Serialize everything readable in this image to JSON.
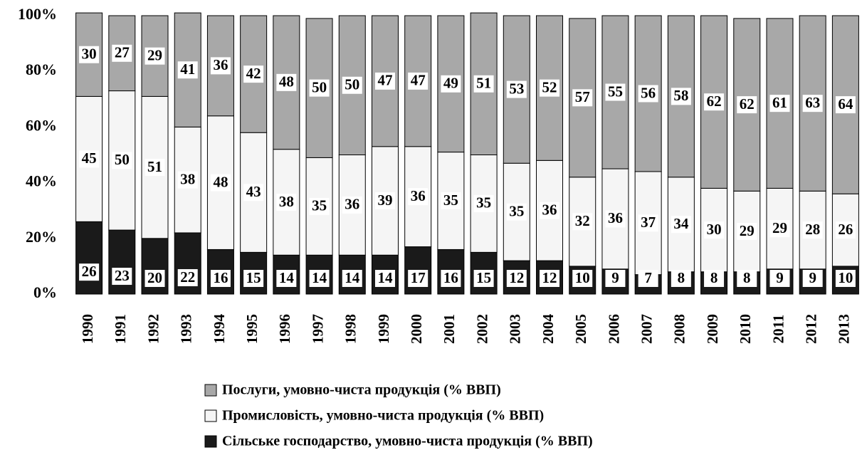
{
  "chart_data": {
    "type": "stacked_bar",
    "categories": [
      "1990",
      "1991",
      "1992",
      "1993",
      "1994",
      "1995",
      "1996",
      "1997",
      "1998",
      "1999",
      "2000",
      "2001",
      "2002",
      "2003",
      "2004",
      "2005",
      "2006",
      "2007",
      "2008",
      "2009",
      "2010",
      "2011",
      "2012",
      "2013"
    ],
    "series": [
      {
        "name": "Сільське господарство, умовно-чиста продукція (% ВВП)",
        "color": "#1a1a1a",
        "values": [
          26,
          23,
          20,
          22,
          16,
          15,
          14,
          14,
          14,
          14,
          17,
          16,
          15,
          12,
          12,
          10,
          9,
          7,
          8,
          8,
          8,
          9,
          9,
          10
        ]
      },
      {
        "name": "Промисловість, умовно-чиста продукція (% ВВП)",
        "color": "#f5f5f5",
        "values": [
          45,
          50,
          51,
          38,
          48,
          43,
          38,
          35,
          36,
          39,
          36,
          35,
          35,
          35,
          36,
          32,
          36,
          37,
          34,
          30,
          29,
          29,
          28,
          26
        ]
      },
      {
        "name": "Послуги, умовно-чиста продукція (% ВВП)",
        "color": "#a8a8a8",
        "values": [
          30,
          27,
          29,
          41,
          36,
          42,
          48,
          50,
          50,
          47,
          47,
          49,
          51,
          53,
          52,
          57,
          55,
          56,
          58,
          62,
          62,
          61,
          63,
          64
        ]
      }
    ],
    "ylim": [
      0,
      100
    ],
    "yticks": [
      {
        "value": 0,
        "label": "0%"
      },
      {
        "value": 20,
        "label": "20%"
      },
      {
        "value": 40,
        "label": "40%"
      },
      {
        "value": 60,
        "label": "60%"
      },
      {
        "value": 80,
        "label": "80%"
      },
      {
        "value": 100,
        "label": "100%"
      }
    ]
  }
}
